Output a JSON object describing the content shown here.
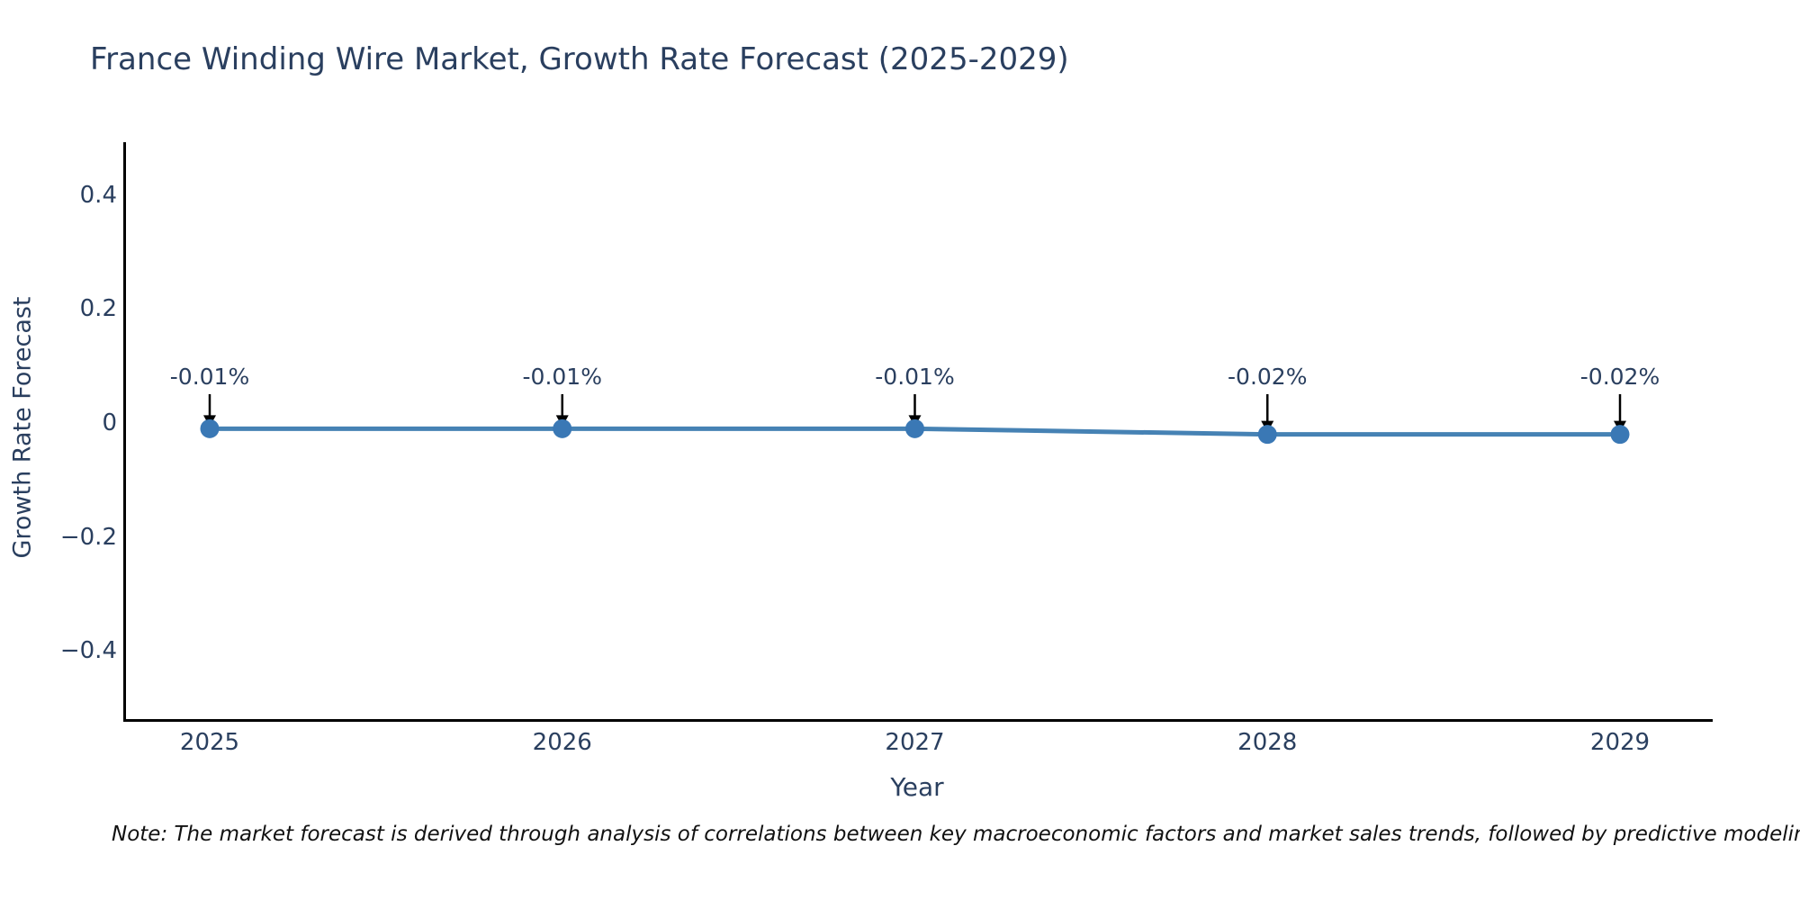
{
  "title": "France Winding Wire Market, Growth Rate Forecast (2025-2029)",
  "chart_data": {
    "type": "line",
    "title": "France Winding Wire Market, Growth Rate Forecast (2025-2029)",
    "categories": [
      "2025",
      "2026",
      "2027",
      "2028",
      "2029"
    ],
    "values": [
      -0.01,
      -0.01,
      -0.01,
      -0.02,
      -0.02
    ],
    "point_labels": [
      "-0.01%",
      "-0.01%",
      "-0.01%",
      "-0.02%",
      "-0.02%"
    ],
    "xlabel": "Year",
    "ylabel": "Growth Rate Forecast",
    "ylim": [
      -0.52,
      0.49
    ],
    "yticks": [
      0.4,
      0.2,
      0,
      -0.2,
      -0.4
    ],
    "ytick_labels": [
      "0.4",
      "0.2",
      "0",
      "−0.2",
      "−0.4"
    ],
    "grid": false,
    "legend": false,
    "colors": {
      "line": "#4682b4",
      "marker": "#3a78b5",
      "axis": "#000000",
      "text": "#2a3f5f",
      "annotation_arrow": "#000000"
    }
  },
  "note": "Note: The market forecast is derived through analysis of correlations between key macroeconomic factors and market sales trends, followed by predictive modeling to project future sales."
}
